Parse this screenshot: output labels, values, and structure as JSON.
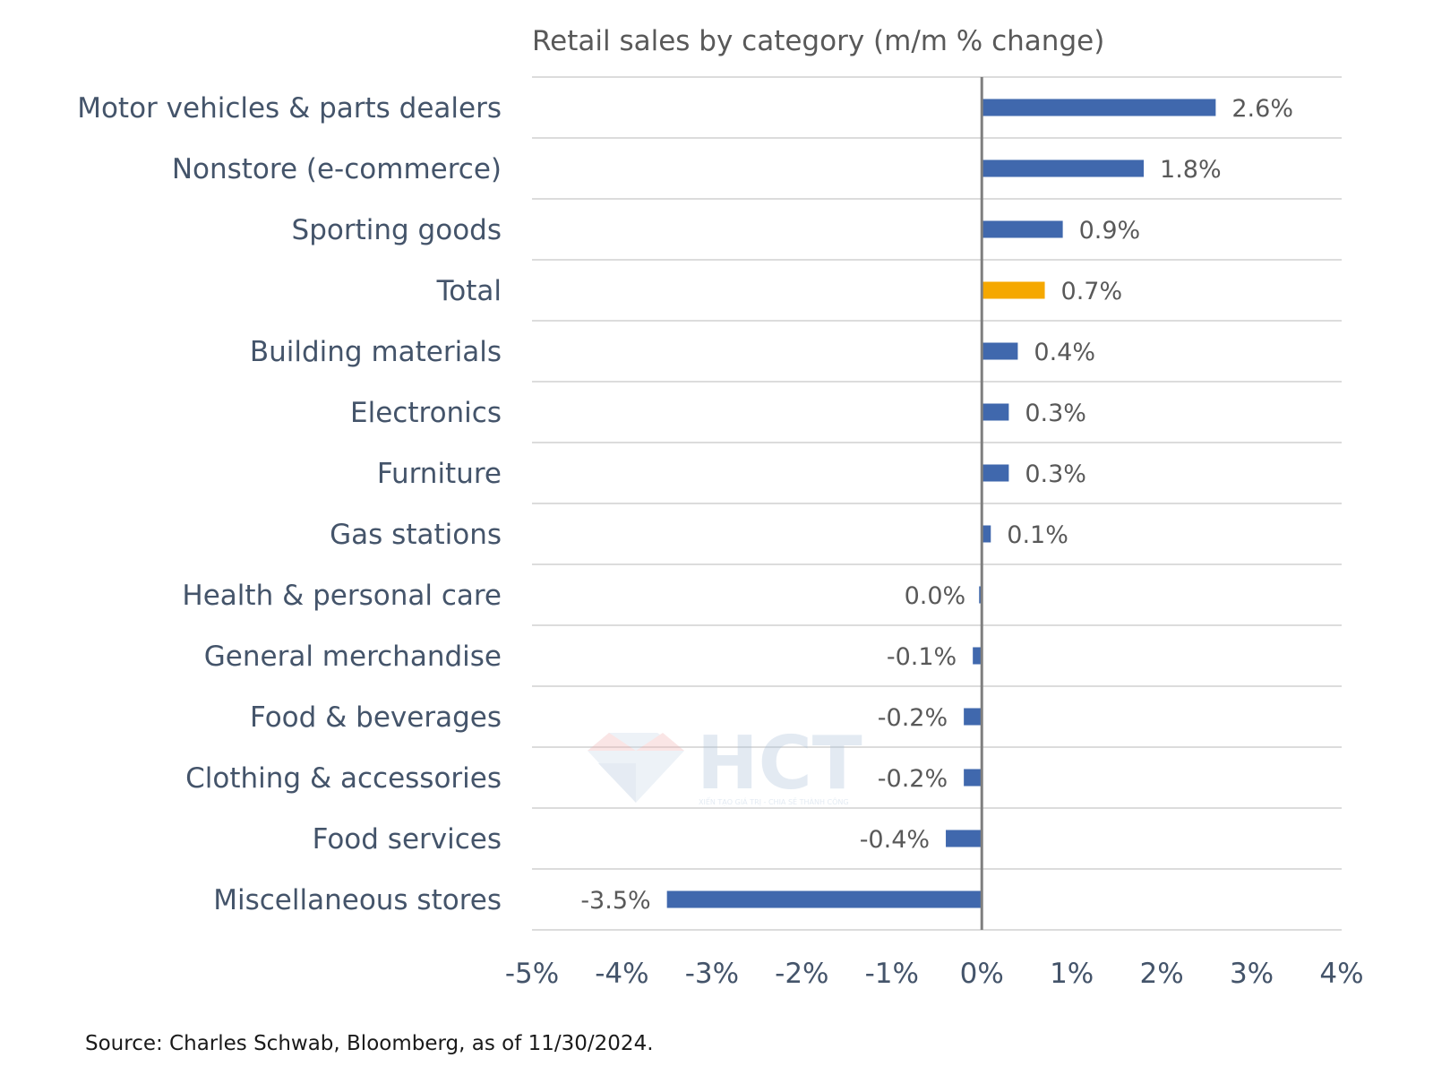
{
  "chart_data": {
    "type": "bar",
    "orientation": "horizontal",
    "title": "Retail sales by category (m/m % change)",
    "categories": [
      "Motor vehicles & parts dealers",
      "Nonstore (e-commerce)",
      "Sporting goods",
      "Total",
      "Building materials",
      "Electronics",
      "Furniture",
      "Gas stations",
      "Health & personal care",
      "General merchandise",
      "Food & beverages",
      "Clothing & accessories",
      "Food services",
      "Miscellaneous stores"
    ],
    "values": [
      2.6,
      1.8,
      0.9,
      0.7,
      0.4,
      0.3,
      0.3,
      0.1,
      0.0,
      -0.1,
      -0.2,
      -0.2,
      -0.4,
      -3.5
    ],
    "value_labels": [
      "2.6%",
      "1.8%",
      "0.9%",
      "0.7%",
      "0.4%",
      "0.3%",
      "0.3%",
      "0.1%",
      "0.0%",
      "-0.1%",
      "-0.2%",
      "-0.2%",
      "-0.4%",
      "-3.5%"
    ],
    "highlight_category": "Total",
    "xlim": [
      -5,
      4
    ],
    "x_ticks": [
      -5,
      -4,
      -3,
      -2,
      -1,
      0,
      1,
      2,
      3,
      4
    ],
    "x_tick_labels": [
      "-5%",
      "-4%",
      "-3%",
      "-2%",
      "-1%",
      "0%",
      "1%",
      "2%",
      "3%",
      "4%"
    ],
    "xlabel": "",
    "ylabel": "",
    "grid": "horizontal",
    "legend": "none",
    "colors": {
      "bar": "#4068ad",
      "highlight": "#f5a800",
      "zero_line": "#7f7f7f",
      "grid": "#d0d0d0"
    }
  },
  "source": "Source: Charles Schwab, Bloomberg, as of 11/30/2024.",
  "watermark": {
    "logo_text": "HCT",
    "tagline": "XIẾN TẠO GIÁ TRỊ - CHIA SẺ THÀNH CÔNG"
  }
}
